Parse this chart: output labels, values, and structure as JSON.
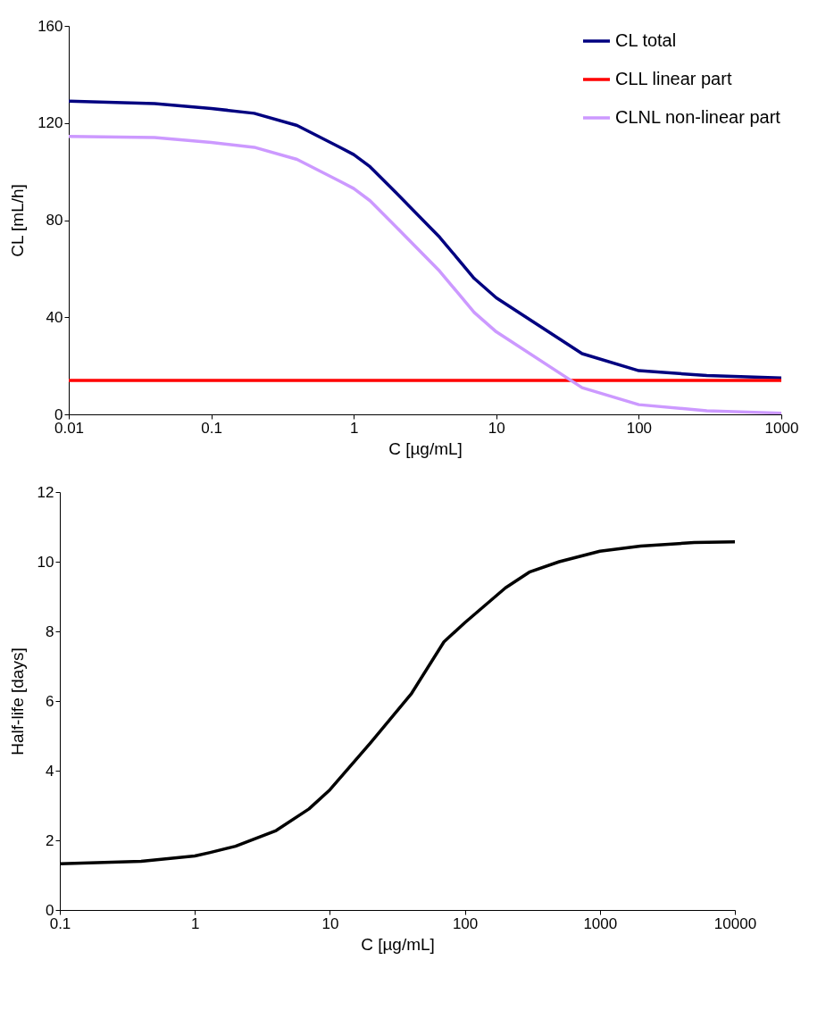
{
  "chart_data": [
    {
      "type": "line",
      "xlabel": "C [µg/mL]",
      "ylabel": "CL [mL/h]",
      "log": "x",
      "xlim": [
        0.01,
        1000
      ],
      "xticks": [
        0.01,
        0.1,
        1,
        10,
        100,
        1000
      ],
      "ylim": [
        0,
        160
      ],
      "yticks": [
        0,
        40,
        80,
        120,
        160
      ],
      "grid": false,
      "legend": "top right",
      "x": [
        0.01,
        0.04,
        0.1,
        0.2,
        0.4,
        0.8,
        1,
        1.3,
        2,
        4,
        7,
        10,
        40,
        100,
        300,
        1000
      ],
      "series": [
        {
          "name": "CL total",
          "color": "#000080",
          "values": [
            129,
            128,
            126,
            124,
            119,
            110,
            107,
            102,
            91,
            73,
            56,
            48,
            25,
            18,
            16,
            15
          ]
        },
        {
          "name": "CLL linear part",
          "color": "#ff0000",
          "values": [
            14,
            14,
            14,
            14,
            14,
            14,
            14,
            14,
            14,
            14,
            14,
            14,
            14,
            14,
            14,
            14
          ]
        },
        {
          "name": "CLNL non-linear part",
          "color": "#cc99ff",
          "values": [
            114.5,
            114,
            112,
            110,
            105,
            96,
            93,
            88,
            77,
            59,
            42,
            34,
            11,
            4,
            1.5,
            0.5
          ]
        }
      ]
    },
    {
      "type": "line",
      "xlabel": "C [µg/mL]",
      "ylabel": "Half-life [days]",
      "log": "x",
      "xlim": [
        0.1,
        10000
      ],
      "xticks": [
        0.1,
        1,
        10,
        100,
        1000,
        10000
      ],
      "ylim": [
        0,
        12
      ],
      "yticks": [
        0,
        2,
        4,
        6,
        8,
        10,
        12
      ],
      "grid": false,
      "x": [
        0.1,
        0.4,
        1,
        1.3,
        2,
        4,
        7,
        10,
        20,
        40,
        70,
        100,
        200,
        300,
        500,
        1000,
        2000,
        5000,
        10000
      ],
      "series": [
        {
          "color": "#000000",
          "values": [
            1.33,
            1.4,
            1.55,
            1.65,
            1.83,
            2.28,
            2.9,
            3.45,
            4.8,
            6.2,
            7.7,
            8.25,
            9.25,
            9.7,
            10.0,
            10.3,
            10.45,
            10.55,
            10.57
          ]
        }
      ]
    }
  ]
}
